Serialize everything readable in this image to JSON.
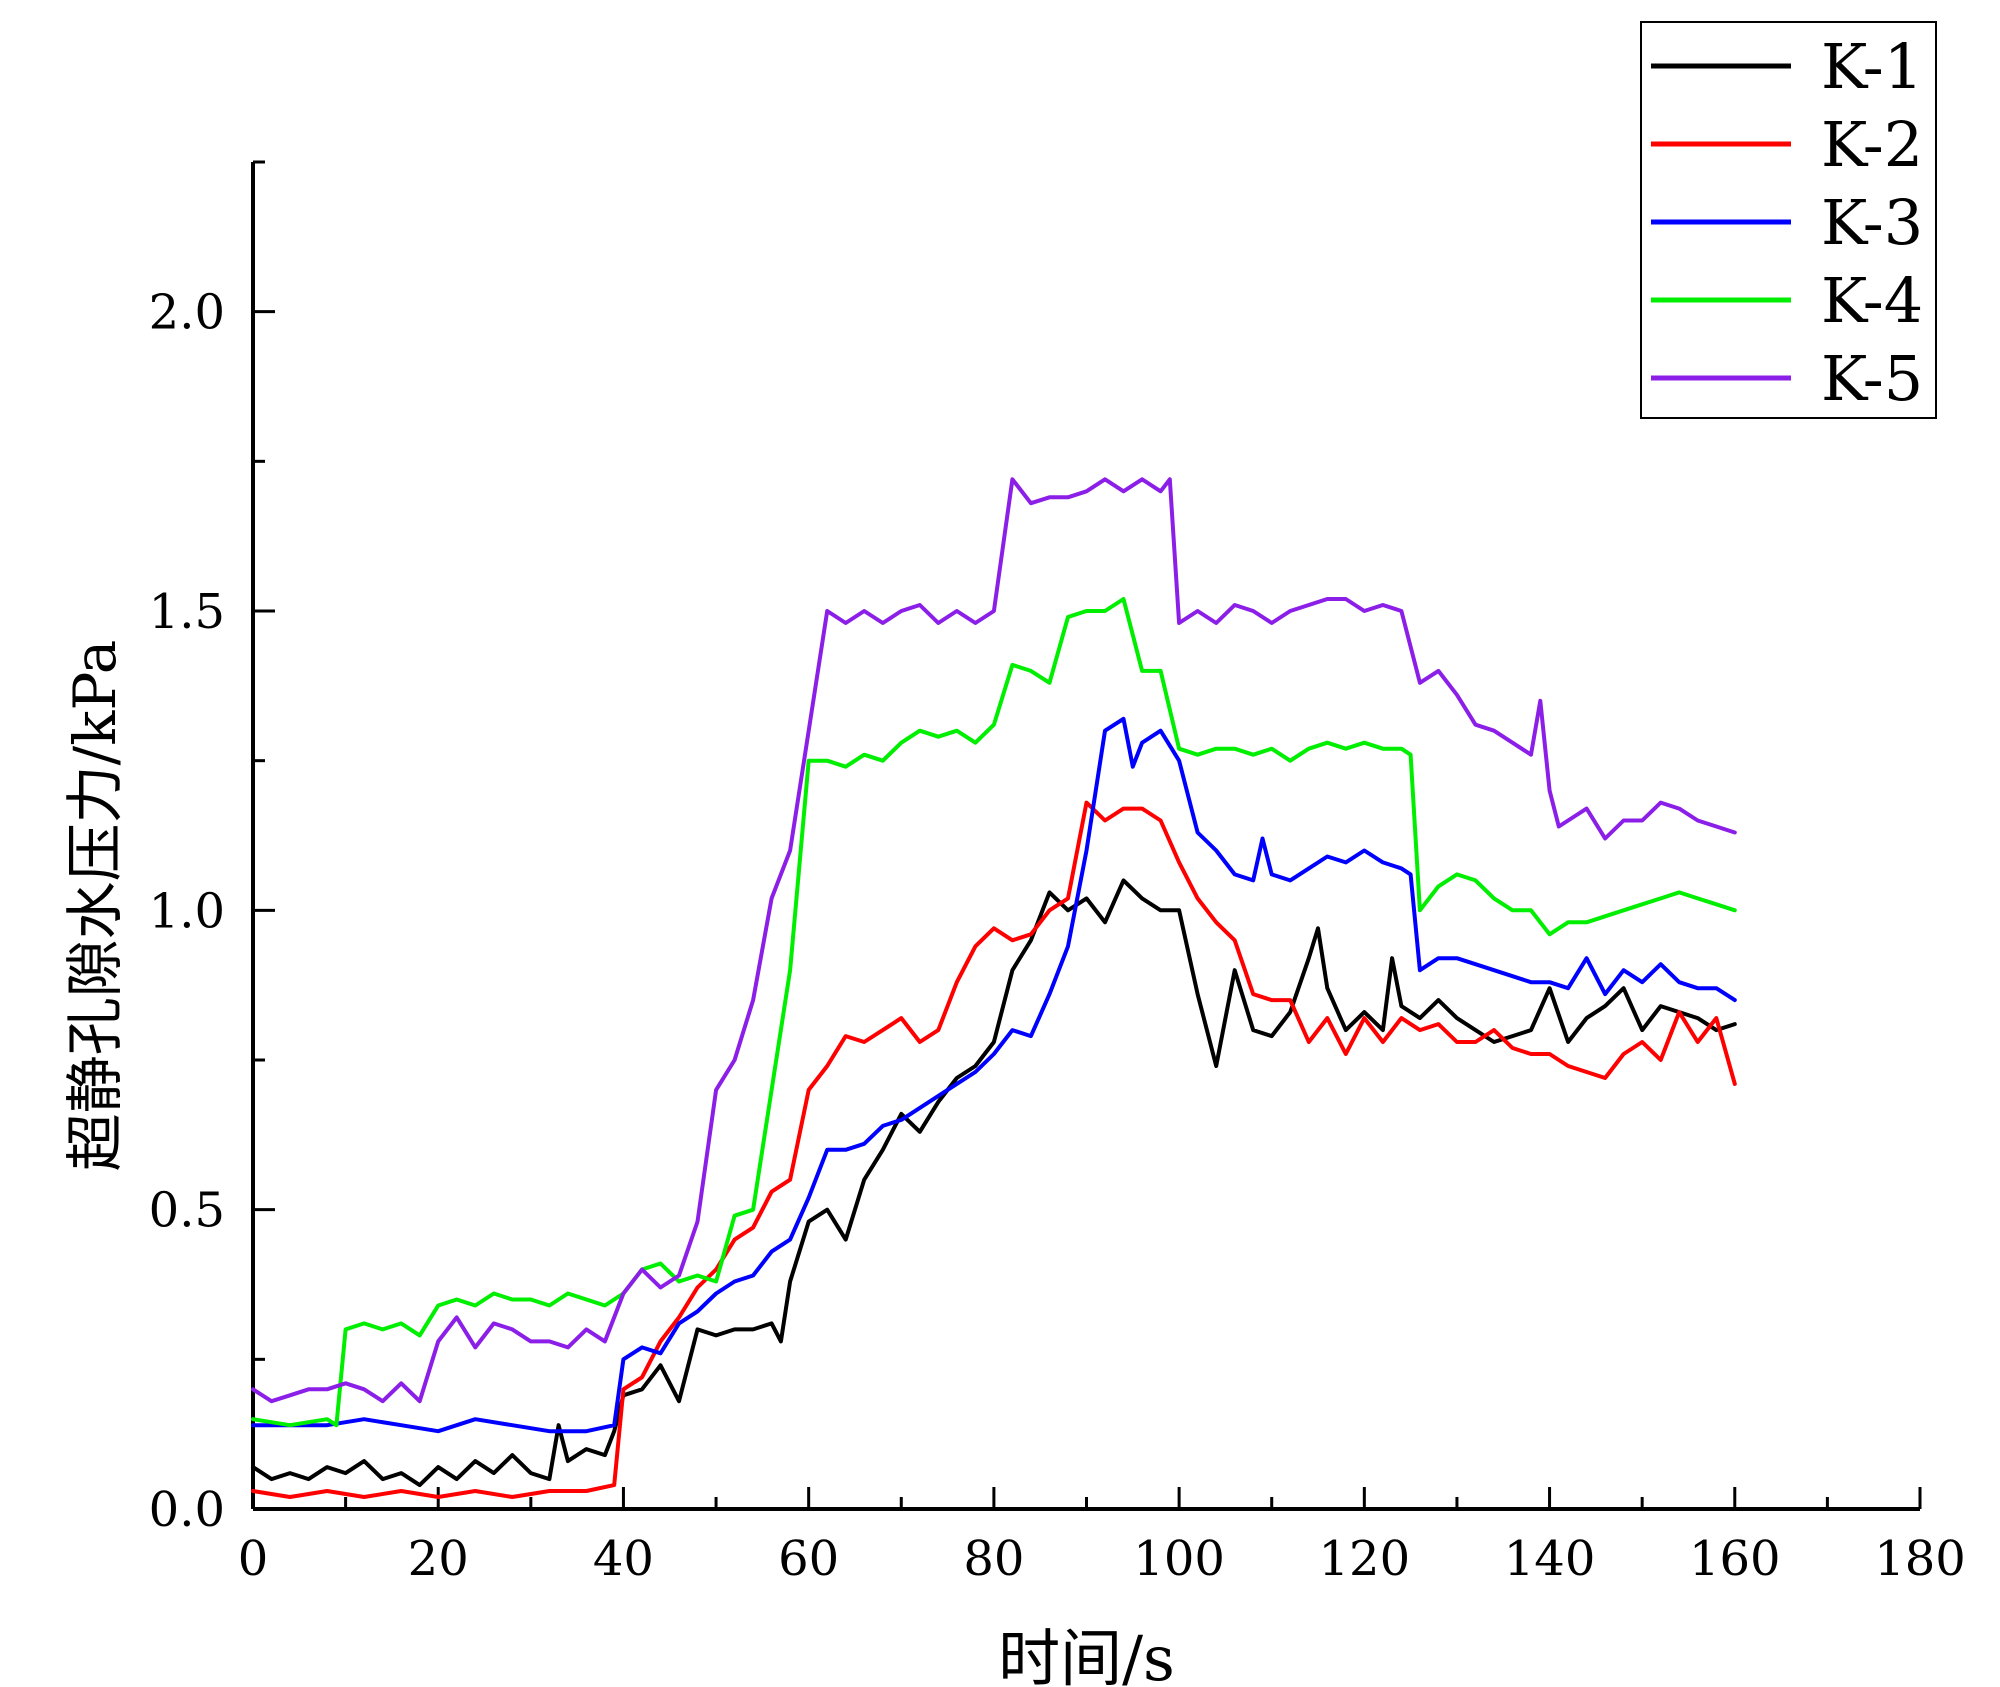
{
  "chart_data": {
    "type": "line",
    "title": "",
    "xlabel": "时间/s",
    "ylabel": "超静孔隙水压力/kPa",
    "xlim": [
      0,
      180
    ],
    "ylim": [
      0,
      2.25
    ],
    "xticks": [
      0,
      20,
      40,
      60,
      80,
      100,
      120,
      140,
      160,
      180
    ],
    "xtick_labels": [
      "0",
      "20",
      "40",
      "60",
      "80",
      "100",
      "120",
      "140",
      "160",
      "180"
    ],
    "yticks": [
      0,
      0.5,
      1.0,
      1.5,
      2.0
    ],
    "ytick_labels": [
      "0.0",
      "0.5",
      "1.0",
      "1.5",
      "2.0"
    ],
    "grid": false,
    "legend_position": "top-right",
    "series": [
      {
        "name": "K-1",
        "color": "#000000",
        "x": [
          0,
          2,
          4,
          6,
          8,
          10,
          12,
          14,
          16,
          18,
          20,
          22,
          24,
          26,
          28,
          30,
          32,
          33,
          34,
          36,
          38,
          39,
          40,
          42,
          44,
          46,
          48,
          50,
          52,
          54,
          56,
          57,
          58,
          60,
          62,
          64,
          66,
          68,
          70,
          72,
          74,
          76,
          78,
          80,
          82,
          84,
          86,
          88,
          90,
          92,
          94,
          96,
          98,
          100,
          102,
          104,
          106,
          108,
          110,
          112,
          114,
          115,
          116,
          118,
          120,
          122,
          123,
          124,
          126,
          128,
          130,
          132,
          134,
          136,
          138,
          140,
          142,
          144,
          146,
          148,
          150,
          152,
          154,
          156,
          158,
          160
        ],
        "y": [
          0.07,
          0.05,
          0.06,
          0.05,
          0.07,
          0.06,
          0.08,
          0.05,
          0.06,
          0.04,
          0.07,
          0.05,
          0.08,
          0.06,
          0.09,
          0.06,
          0.05,
          0.14,
          0.08,
          0.1,
          0.09,
          0.13,
          0.19,
          0.2,
          0.24,
          0.18,
          0.3,
          0.29,
          0.3,
          0.3,
          0.31,
          0.28,
          0.38,
          0.48,
          0.5,
          0.45,
          0.55,
          0.6,
          0.66,
          0.63,
          0.68,
          0.72,
          0.74,
          0.78,
          0.9,
          0.95,
          1.03,
          1.0,
          1.02,
          0.98,
          1.05,
          1.02,
          1.0,
          1.0,
          0.86,
          0.74,
          0.9,
          0.8,
          0.79,
          0.83,
          0.92,
          0.97,
          0.87,
          0.8,
          0.83,
          0.8,
          0.92,
          0.84,
          0.82,
          0.85,
          0.82,
          0.8,
          0.78,
          0.79,
          0.8,
          0.87,
          0.78,
          0.82,
          0.84,
          0.87,
          0.8,
          0.84,
          0.83,
          0.82,
          0.8,
          0.81
        ]
      },
      {
        "name": "K-2",
        "color": "#ff0000",
        "x": [
          0,
          4,
          8,
          12,
          16,
          20,
          24,
          28,
          32,
          36,
          39,
          40,
          42,
          44,
          46,
          48,
          50,
          52,
          54,
          56,
          58,
          60,
          62,
          64,
          66,
          68,
          70,
          72,
          74,
          76,
          78,
          80,
          82,
          84,
          86,
          88,
          90,
          92,
          94,
          96,
          98,
          100,
          102,
          104,
          106,
          108,
          110,
          112,
          114,
          116,
          118,
          120,
          122,
          124,
          126,
          128,
          130,
          132,
          134,
          136,
          138,
          140,
          142,
          144,
          146,
          148,
          150,
          152,
          154,
          156,
          158,
          160
        ],
        "y": [
          0.03,
          0.02,
          0.03,
          0.02,
          0.03,
          0.02,
          0.03,
          0.02,
          0.03,
          0.03,
          0.04,
          0.2,
          0.22,
          0.28,
          0.32,
          0.37,
          0.4,
          0.45,
          0.47,
          0.53,
          0.55,
          0.7,
          0.74,
          0.79,
          0.78,
          0.8,
          0.82,
          0.78,
          0.8,
          0.88,
          0.94,
          0.97,
          0.95,
          0.96,
          1.0,
          1.02,
          1.18,
          1.15,
          1.17,
          1.17,
          1.15,
          1.08,
          1.02,
          0.98,
          0.95,
          0.86,
          0.85,
          0.85,
          0.78,
          0.82,
          0.76,
          0.82,
          0.78,
          0.82,
          0.8,
          0.81,
          0.78,
          0.78,
          0.8,
          0.77,
          0.76,
          0.76,
          0.74,
          0.73,
          0.72,
          0.76,
          0.78,
          0.75,
          0.83,
          0.78,
          0.82,
          0.71
        ]
      },
      {
        "name": "K-3",
        "color": "#0000ff",
        "x": [
          0,
          4,
          8,
          12,
          16,
          20,
          24,
          28,
          32,
          36,
          39,
          40,
          42,
          44,
          46,
          48,
          50,
          52,
          54,
          56,
          58,
          60,
          62,
          64,
          66,
          68,
          70,
          72,
          74,
          76,
          78,
          80,
          82,
          84,
          86,
          88,
          90,
          92,
          94,
          95,
          96,
          98,
          100,
          102,
          104,
          106,
          108,
          109,
          110,
          112,
          114,
          116,
          118,
          120,
          122,
          124,
          125,
          126,
          128,
          130,
          132,
          134,
          136,
          138,
          140,
          142,
          144,
          146,
          148,
          150,
          152,
          154,
          156,
          158,
          160
        ],
        "y": [
          0.14,
          0.14,
          0.14,
          0.15,
          0.14,
          0.13,
          0.15,
          0.14,
          0.13,
          0.13,
          0.14,
          0.25,
          0.27,
          0.26,
          0.31,
          0.33,
          0.36,
          0.38,
          0.39,
          0.43,
          0.45,
          0.52,
          0.6,
          0.6,
          0.61,
          0.64,
          0.65,
          0.67,
          0.69,
          0.71,
          0.73,
          0.76,
          0.8,
          0.79,
          0.86,
          0.94,
          1.1,
          1.3,
          1.32,
          1.24,
          1.28,
          1.3,
          1.25,
          1.13,
          1.1,
          1.06,
          1.05,
          1.12,
          1.06,
          1.05,
          1.07,
          1.09,
          1.08,
          1.1,
          1.08,
          1.07,
          1.06,
          0.9,
          0.92,
          0.92,
          0.91,
          0.9,
          0.89,
          0.88,
          0.88,
          0.87,
          0.92,
          0.86,
          0.9,
          0.88,
          0.91,
          0.88,
          0.87,
          0.87,
          0.85
        ]
      },
      {
        "name": "K-4",
        "color": "#00ee00",
        "x": [
          0,
          4,
          8,
          9,
          10,
          12,
          14,
          16,
          18,
          20,
          22,
          24,
          26,
          28,
          30,
          32,
          34,
          36,
          38,
          40,
          42,
          44,
          46,
          48,
          50,
          52,
          54,
          56,
          58,
          60,
          62,
          64,
          66,
          68,
          70,
          72,
          74,
          76,
          78,
          80,
          82,
          84,
          86,
          88,
          90,
          92,
          94,
          96,
          98,
          100,
          102,
          104,
          106,
          108,
          110,
          112,
          114,
          116,
          118,
          120,
          122,
          124,
          125,
          126,
          128,
          130,
          132,
          134,
          136,
          138,
          140,
          142,
          144,
          146,
          148,
          150,
          152,
          154,
          156,
          158,
          160
        ],
        "y": [
          0.15,
          0.14,
          0.15,
          0.14,
          0.3,
          0.31,
          0.3,
          0.31,
          0.29,
          0.34,
          0.35,
          0.34,
          0.36,
          0.35,
          0.35,
          0.34,
          0.36,
          0.35,
          0.34,
          0.36,
          0.4,
          0.41,
          0.38,
          0.39,
          0.38,
          0.49,
          0.5,
          0.7,
          0.9,
          1.25,
          1.25,
          1.24,
          1.26,
          1.25,
          1.28,
          1.3,
          1.29,
          1.3,
          1.28,
          1.31,
          1.41,
          1.4,
          1.38,
          1.49,
          1.5,
          1.5,
          1.52,
          1.4,
          1.4,
          1.27,
          1.26,
          1.27,
          1.27,
          1.26,
          1.27,
          1.25,
          1.27,
          1.28,
          1.27,
          1.28,
          1.27,
          1.27,
          1.26,
          1.0,
          1.04,
          1.06,
          1.05,
          1.02,
          1.0,
          1.0,
          0.96,
          0.98,
          0.98,
          0.99,
          1.0,
          1.01,
          1.02,
          1.03,
          1.02,
          1.01,
          1.0
        ]
      },
      {
        "name": "K-5",
        "color": "#8b1fe8",
        "x": [
          0,
          2,
          4,
          6,
          8,
          10,
          12,
          14,
          16,
          18,
          20,
          22,
          24,
          26,
          28,
          30,
          32,
          34,
          36,
          38,
          40,
          42,
          44,
          46,
          48,
          50,
          52,
          54,
          56,
          58,
          60,
          62,
          64,
          66,
          68,
          70,
          72,
          74,
          76,
          78,
          80,
          82,
          84,
          86,
          88,
          90,
          92,
          94,
          96,
          98,
          99,
          100,
          102,
          104,
          106,
          108,
          110,
          112,
          114,
          116,
          118,
          120,
          122,
          124,
          126,
          128,
          130,
          132,
          134,
          136,
          138,
          139,
          140,
          141,
          142,
          144,
          146,
          148,
          150,
          152,
          154,
          156,
          158,
          160
        ],
        "y": [
          0.2,
          0.18,
          0.19,
          0.2,
          0.2,
          0.21,
          0.2,
          0.18,
          0.21,
          0.18,
          0.28,
          0.32,
          0.27,
          0.31,
          0.3,
          0.28,
          0.28,
          0.27,
          0.3,
          0.28,
          0.36,
          0.4,
          0.37,
          0.39,
          0.48,
          0.7,
          0.75,
          0.85,
          1.02,
          1.1,
          1.3,
          1.5,
          1.48,
          1.5,
          1.48,
          1.5,
          1.51,
          1.48,
          1.5,
          1.48,
          1.5,
          1.72,
          1.68,
          1.69,
          1.69,
          1.7,
          1.72,
          1.7,
          1.72,
          1.7,
          1.72,
          1.48,
          1.5,
          1.48,
          1.51,
          1.5,
          1.48,
          1.5,
          1.51,
          1.52,
          1.52,
          1.5,
          1.51,
          1.5,
          1.38,
          1.4,
          1.36,
          1.31,
          1.3,
          1.28,
          1.26,
          1.35,
          1.2,
          1.14,
          1.15,
          1.17,
          1.12,
          1.15,
          1.15,
          1.18,
          1.17,
          1.15,
          1.14,
          1.13
        ]
      }
    ]
  }
}
